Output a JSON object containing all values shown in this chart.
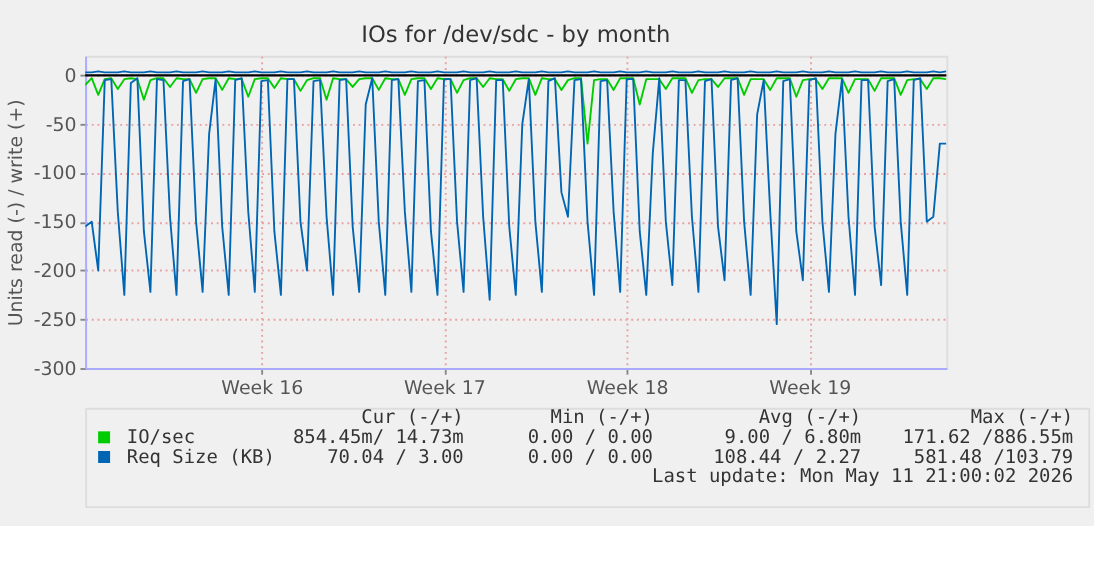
{
  "chart_data": {
    "type": "line",
    "title": "IOs for /dev/sdc - by month",
    "ylabel": "Units read (-) / write (+)",
    "categories": [
      null,
      null,
      null,
      null,
      null,
      null,
      null,
      null,
      null,
      null,
      null,
      null,
      null,
      null,
      null,
      null,
      null,
      null,
      null,
      null,
      null,
      null,
      null,
      null,
      null,
      null,
      null,
      "Week 16",
      null,
      null,
      null,
      null,
      null,
      null,
      null,
      null,
      null,
      null,
      null,
      null,
      null,
      null,
      null,
      null,
      null,
      null,
      null,
      null,
      null,
      null,
      null,
      null,
      null,
      null,
      null,
      "Week 17",
      null,
      null,
      null,
      null,
      null,
      null,
      null,
      null,
      null,
      null,
      null,
      null,
      null,
      null,
      null,
      null,
      null,
      null,
      null,
      null,
      null,
      null,
      null,
      null,
      null,
      null,
      null,
      "Week 18",
      null,
      null,
      null,
      null,
      null,
      null,
      null,
      null,
      null,
      null,
      null,
      null,
      null,
      null,
      null,
      null,
      null,
      null,
      null,
      null,
      null,
      null,
      null,
      null,
      null,
      null,
      null,
      "Week 19",
      null,
      null,
      null,
      null,
      null,
      null,
      null,
      null,
      null,
      null,
      null,
      null,
      null,
      null,
      null,
      null,
      null,
      null,
      null,
      null,
      null
    ],
    "ylim": [
      -300,
      20
    ],
    "yticks": [
      -300,
      -250,
      -200,
      -150,
      -100,
      -50,
      0
    ],
    "grid": true,
    "legend": "bottom",
    "line_style": "solid",
    "marker": "none",
    "ref_lines": [
      {
        "axis": "y",
        "value": 0,
        "label": null,
        "color": "#000000"
      }
    ],
    "series": [
      {
        "name": "IO/sec",
        "color": "#00cc00",
        "values": [
          -10,
          -3,
          -20,
          -4,
          -3,
          -14,
          -4,
          -3,
          -4,
          -25,
          -5,
          -3,
          -3,
          -12,
          -3,
          -4,
          -4,
          -18,
          -4,
          -3,
          -3,
          -15,
          -3,
          -4,
          -4,
          -22,
          -4,
          -3,
          -3,
          -13,
          -3,
          -4,
          -4,
          -16,
          -5,
          -3,
          -3,
          -25,
          -3,
          -4,
          -4,
          -12,
          -4,
          -3,
          -3,
          -15,
          -3,
          -4,
          -4,
          -20,
          -4,
          -3,
          -3,
          -14,
          -3,
          -4,
          -4,
          -18,
          -5,
          -3,
          -3,
          -12,
          -3,
          -4,
          -4,
          -16,
          -4,
          -3,
          -3,
          -20,
          -3,
          -4,
          -4,
          -15,
          -5,
          -3,
          -3,
          -70,
          -5,
          -4,
          -4,
          -15,
          -3,
          -3,
          -3,
          -30,
          -4,
          -4,
          -4,
          -14,
          -3,
          -3,
          -3,
          -18,
          -5,
          -4,
          -4,
          -12,
          -3,
          -3,
          -3,
          -20,
          -4,
          -4,
          -4,
          -15,
          -3,
          -3,
          -3,
          -22,
          -5,
          -4,
          -4,
          -14,
          -3,
          -3,
          -3,
          -18,
          -4,
          -4,
          -4,
          -16,
          -3,
          -3,
          -3,
          -20,
          -5,
          -4,
          -4,
          -14,
          -3,
          -3,
          -4
        ]
      },
      {
        "name": "Req Size (KB)",
        "color": "#0066b3",
        "values": [
          -155,
          -150,
          -200,
          -5,
          -4,
          -140,
          -225,
          -8,
          -3,
          -160,
          -222,
          -4,
          -5,
          -145,
          -225,
          -6,
          -4,
          -150,
          -222,
          -60,
          -4,
          -155,
          -225,
          -5,
          -3,
          -140,
          -222,
          -6,
          -5,
          -160,
          -225,
          -4,
          -4,
          -150,
          -200,
          -6,
          -5,
          -145,
          -225,
          -5,
          -4,
          -155,
          -222,
          -30,
          -3,
          -150,
          -225,
          -5,
          -4,
          -140,
          -222,
          -6,
          -5,
          -160,
          -225,
          -4,
          -4,
          -150,
          -222,
          -5,
          -3,
          -145,
          -230,
          -5,
          -5,
          -155,
          -225,
          -50,
          -4,
          -150,
          -222,
          -6,
          -3,
          -120,
          -145,
          -5,
          -4,
          -150,
          -225,
          -6,
          -5,
          -140,
          -222,
          -4,
          -4,
          -160,
          -225,
          -80,
          -3,
          -150,
          -215,
          -5,
          -5,
          -145,
          -222,
          -6,
          -4,
          -155,
          -210,
          -5,
          -3,
          -150,
          -225,
          -40,
          -5,
          -140,
          -255,
          -6,
          -4,
          -160,
          -210,
          -5,
          -3,
          -150,
          -222,
          -60,
          -4,
          -145,
          -225,
          -5,
          -5,
          -155,
          -215,
          -6,
          -4,
          -150,
          -225,
          -5,
          -3,
          -150,
          -145,
          -70,
          -70
        ]
      },
      {
        "color": "#0066b3",
        "values": [
          3,
          3,
          4,
          3,
          3,
          3,
          4,
          3,
          3,
          3,
          4,
          3,
          3,
          3,
          4,
          3,
          3,
          3,
          4,
          3,
          3,
          3,
          4,
          3,
          3,
          3,
          4,
          3,
          3,
          3,
          4,
          3,
          3,
          3,
          4,
          3,
          3,
          3,
          4,
          3,
          3,
          3,
          4,
          3,
          3,
          3,
          4,
          3,
          3,
          3,
          4,
          3,
          3,
          3,
          4,
          3,
          3,
          3,
          4,
          3,
          3,
          3,
          4,
          3,
          3,
          3,
          4,
          3,
          3,
          3,
          4,
          3,
          3,
          3,
          4,
          3,
          3,
          3,
          4,
          3,
          3,
          3,
          4,
          3,
          3,
          3,
          4,
          3,
          3,
          3,
          4,
          3,
          3,
          3,
          4,
          3,
          3,
          3,
          4,
          3,
          3,
          3,
          4,
          3,
          3,
          3,
          4,
          3,
          3,
          3,
          4,
          3,
          3,
          3,
          4,
          3,
          3,
          3,
          4,
          3,
          3,
          3,
          4,
          3,
          3,
          3,
          4,
          3,
          3,
          3,
          4,
          3,
          4
        ]
      }
    ],
    "annotations": [
      "Cur (-/+)",
      "Min (-/+)",
      "Avg (-/+)",
      "Max (-/+)",
      "854.45m/ 14.73m",
      "0.00 /  0.00",
      "9.00 /  6.80m",
      "171.62 /886.55m",
      "70.04 /  3.00",
      "0.00 /  0.00",
      "108.44 /  2.27",
      "581.48 /103.79",
      "Last update: Mon May 11 21:00:02 2026"
    ]
  }
}
